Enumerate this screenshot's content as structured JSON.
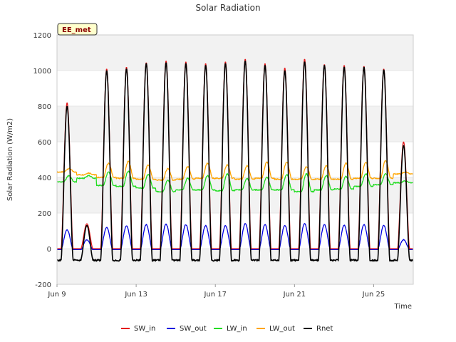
{
  "chart_data": {
    "type": "line",
    "title": "Solar Radiation",
    "xlabel": "Time",
    "ylabel": "Solar Radiation (W/m2)",
    "badge": "EE_met",
    "xlim": [
      "2024-06-09",
      "2024-06-27"
    ],
    "ylim": [
      -200,
      1200
    ],
    "yticks": [
      -200,
      0,
      200,
      400,
      600,
      800,
      1000,
      1200
    ],
    "xticks": [
      {
        "date": "2024-06-09",
        "label": "Jun 9"
      },
      {
        "date": "2024-06-13",
        "label": "Jun 13"
      },
      {
        "date": "2024-06-17",
        "label": "Jun 17"
      },
      {
        "date": "2024-06-21",
        "label": "Jun 21"
      },
      {
        "date": "2024-06-25",
        "label": "Jun 25"
      }
    ],
    "grid": "alternating horizontal bands",
    "legend_position": "bottom",
    "days": [
      "2024-06-09",
      "2024-06-10",
      "2024-06-11",
      "2024-06-12",
      "2024-06-13",
      "2024-06-14",
      "2024-06-15",
      "2024-06-16",
      "2024-06-17",
      "2024-06-18",
      "2024-06-19",
      "2024-06-20",
      "2024-06-21",
      "2024-06-22",
      "2024-06-23",
      "2024-06-24",
      "2024-06-25",
      "2024-06-26"
    ],
    "series": [
      {
        "name": "SW_in",
        "color": "#e41a1c",
        "night": 0,
        "daily_peak": [
          820,
          140,
          1010,
          1020,
          1045,
          1055,
          1050,
          1040,
          1050,
          1065,
          1040,
          1015,
          1065,
          1035,
          1030,
          1025,
          1010,
          600
        ]
      },
      {
        "name": "SW_out",
        "color": "#0000e0",
        "night": -5,
        "daily_peak": [
          105,
          50,
          120,
          128,
          135,
          138,
          135,
          130,
          128,
          140,
          135,
          130,
          140,
          135,
          132,
          135,
          130,
          50
        ]
      },
      {
        "name": "LW_in",
        "color": "#22dd22",
        "daily_min": [
          375,
          395,
          355,
          350,
          340,
          320,
          330,
          330,
          325,
          330,
          330,
          330,
          320,
          330,
          335,
          350,
          360,
          370
        ],
        "daily_max": [
          410,
          410,
          430,
          435,
          415,
          385,
          395,
          410,
          420,
          395,
          400,
          415,
          420,
          410,
          405,
          420,
          420,
          380
        ]
      },
      {
        "name": "LW_out",
        "color": "#ffa500",
        "daily_min": [
          430,
          415,
          400,
          395,
          390,
          385,
          390,
          395,
          395,
          390,
          395,
          390,
          390,
          390,
          390,
          395,
          395,
          420
        ],
        "daily_max": [
          450,
          425,
          480,
          490,
          470,
          450,
          460,
          480,
          470,
          465,
          485,
          485,
          460,
          465,
          480,
          485,
          495,
          430
        ]
      },
      {
        "name": "Rnet",
        "color": "#000000",
        "night": -60,
        "daily_peak": [
          800,
          130,
          1000,
          1010,
          1040,
          1045,
          1040,
          1030,
          1040,
          1055,
          1030,
          1000,
          1050,
          1030,
          1020,
          1020,
          1005,
          580
        ]
      }
    ]
  }
}
